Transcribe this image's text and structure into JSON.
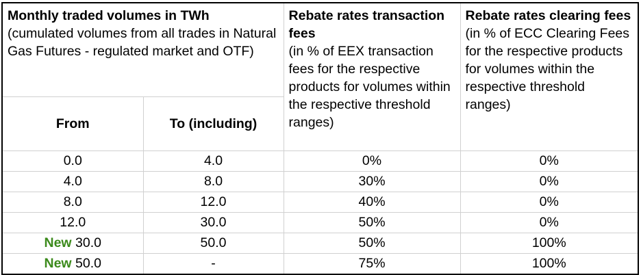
{
  "header": {
    "volumes_title": "Monthly traded volumes in TWh",
    "volumes_desc": "(cumulated volumes from all trades in Natural Gas Futures - regulated market and OTF)",
    "transaction_title": "Rebate rates transaction fees",
    "transaction_desc": "(in % of EEX transaction fees for the respective products for volumes within the respective threshold ranges)",
    "clearing_title": "Rebate rates clearing fees",
    "clearing_desc": "(in % of ECC Clearing Fees for the respective products for volumes within the respective threshold ranges)",
    "from_label": "From",
    "to_label": "To (including)"
  },
  "rows": [
    {
      "tag": "",
      "from": "0.0",
      "to": "4.0",
      "transaction": "0%",
      "clearing": "0%"
    },
    {
      "tag": "",
      "from": "4.0",
      "to": "8.0",
      "transaction": "30%",
      "clearing": "0%"
    },
    {
      "tag": "",
      "from": "8.0",
      "to": "12.0",
      "transaction": "40%",
      "clearing": "0%"
    },
    {
      "tag": "",
      "from": "12.0",
      "to": "30.0",
      "transaction": "50%",
      "clearing": "0%"
    },
    {
      "tag": "New",
      "from": "30.0",
      "to": "50.0",
      "transaction": "50%",
      "clearing": "100%"
    },
    {
      "tag": "New",
      "from": "50.0",
      "to": "-",
      "transaction": "75%",
      "clearing": "100%"
    }
  ],
  "colors": {
    "new_tag": "#3b8a1b",
    "frame": "#000000",
    "grid": "#d0d0d0"
  }
}
